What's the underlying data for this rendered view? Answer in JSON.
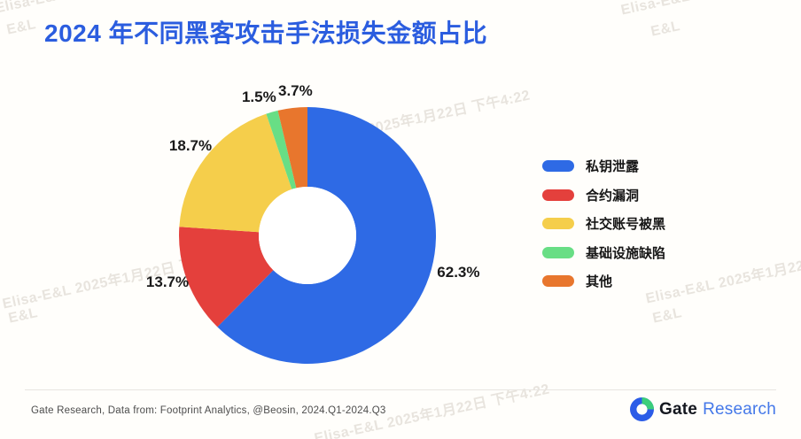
{
  "header": {
    "title": "2024 年不同黑客攻击手法损失金额占比"
  },
  "chart_data": {
    "type": "pie",
    "subtype": "donut",
    "title": "2024 年不同黑客攻击手法损失金额占比",
    "labels": [
      "私钥泄露",
      "合约漏洞",
      "社交账号被黑",
      "基础设施缺陷",
      "其他"
    ],
    "values": [
      62.3,
      13.7,
      18.7,
      1.5,
      3.7
    ],
    "colors": [
      "#2E6AE5",
      "#E4403C",
      "#F5CE4B",
      "#68DE85",
      "#E8762D"
    ],
    "value_suffix": "%",
    "start_angle_deg": 0,
    "direction": "clockwise",
    "legend_position": "right",
    "hole_color": "#FFFFFF"
  },
  "watermark": {
    "full": "Elisa-E&L 2025年1月22日 下午4:22",
    "short": "E&L"
  },
  "footer": {
    "source": "Gate Research, Data from: Footprint Analytics, @Beosin, 2024.Q1-2024.Q3",
    "logo_gate": "Gate",
    "logo_research": "Research"
  },
  "colors": {
    "title_blue": "#2B5DDF",
    "logo_blue": "#2B5CE7",
    "logo_green": "#3BCE7A",
    "label_text": "#1A1A1A"
  }
}
